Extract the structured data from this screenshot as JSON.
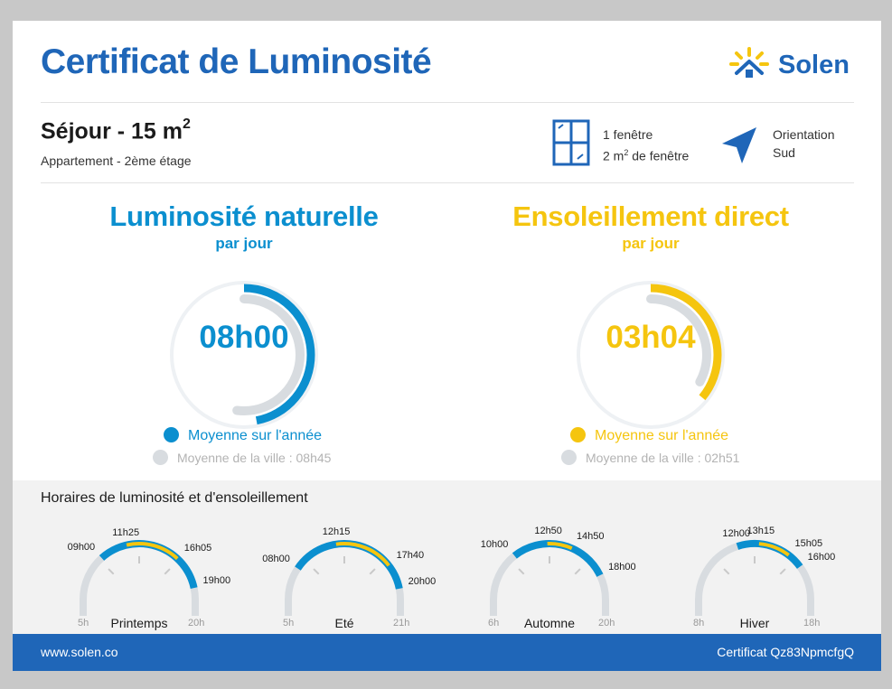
{
  "title": "Certificat de Luminosité",
  "logo": {
    "text": "Solen"
  },
  "room": {
    "title": "Séjour - 15 m",
    "title_sup": "2",
    "subtitle": "Appartement - 2ème étage"
  },
  "window": {
    "line1": "1 fenêtre",
    "line2_pre": "2 m",
    "line2_sup": "2",
    "line2_post": " de fenêtre"
  },
  "orientation": {
    "line1": "Orientation",
    "line2": "Sud"
  },
  "natural": {
    "title": "Luminosité naturelle",
    "subtitle": "par jour",
    "value": "08h00",
    "fraction": 0.47,
    "legend": "Moyenne sur l'année",
    "city": "Moyenne de la ville : 08h45",
    "city_fraction": 0.52,
    "color": "#0b8fcf"
  },
  "direct": {
    "title": "Ensoleillement direct",
    "subtitle": "par jour",
    "value": "03h04",
    "fraction": 0.36,
    "legend": "Moyenne sur l'année",
    "city": "Moyenne de la ville : 02h51",
    "city_fraction": 0.33,
    "color": "#f5c50f"
  },
  "schedule": {
    "title": "Horaires de luminosité et d'ensoleillement",
    "seasons": [
      {
        "name": "Printemps",
        "start": "5h",
        "end": "20h",
        "start_h": 5,
        "end_h": 20,
        "light_from": "09h00",
        "sun_from": "11h25",
        "sun_to": "16h05",
        "light_to": "19h00",
        "light_from_h": 9.0,
        "sun_from_h": 11.42,
        "sun_to_h": 16.08,
        "light_to_h": 19.0
      },
      {
        "name": "Eté",
        "start": "5h",
        "end": "21h",
        "start_h": 5,
        "end_h": 21,
        "light_from": "08h00",
        "sun_from": "12h15",
        "sun_to": "17h40",
        "light_to": "20h00",
        "light_from_h": 8.0,
        "sun_from_h": 12.25,
        "sun_to_h": 17.67,
        "light_to_h": 20.0
      },
      {
        "name": "Automne",
        "start": "6h",
        "end": "20h",
        "start_h": 6,
        "end_h": 20,
        "light_from": "10h00",
        "sun_from": "12h50",
        "sun_to": "14h50",
        "light_to": "18h00",
        "light_from_h": 10.0,
        "sun_from_h": 12.83,
        "sun_to_h": 14.83,
        "light_to_h": 18.0
      },
      {
        "name": "Hiver",
        "start": "8h",
        "end": "18h",
        "start_h": 8,
        "end_h": 18,
        "light_from": "12h00",
        "sun_from": "13h15",
        "sun_to": "15h05",
        "light_to": "16h00",
        "light_from_h": 12.0,
        "sun_from_h": 13.25,
        "sun_to_h": 15.08,
        "light_to_h": 16.0
      }
    ]
  },
  "footer": {
    "url": "www.solen.co",
    "certificate": "Certificat Qz83NpmcfgQ"
  },
  "colors": {
    "blue": "#1f66b8",
    "light": "#0b8fcf",
    "sun": "#f5c50f",
    "grey": "#d8dce0"
  }
}
